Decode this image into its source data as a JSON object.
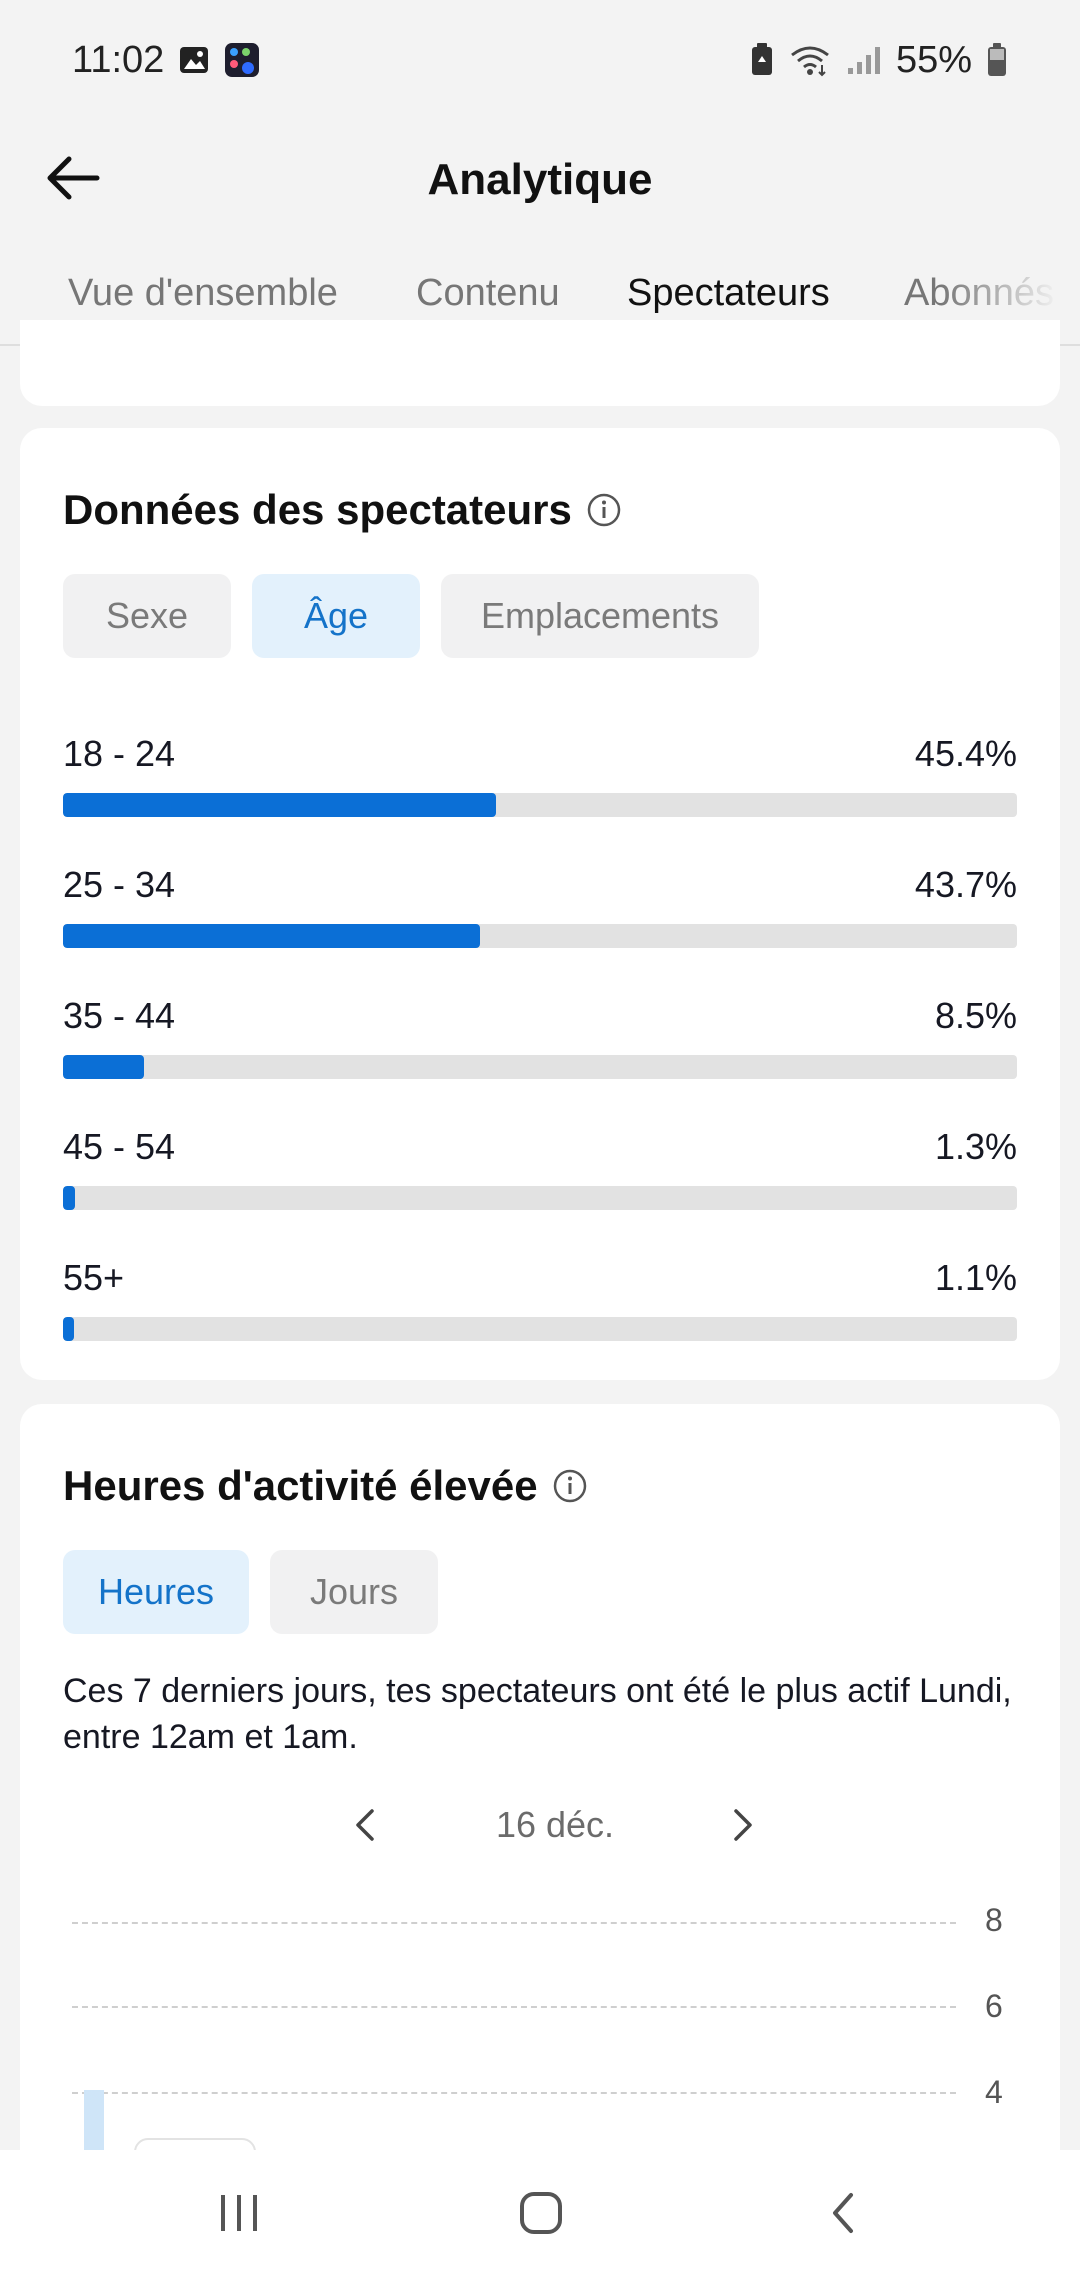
{
  "status_bar": {
    "time": "11:02",
    "battery": "55%",
    "icons": [
      "gallery-icon",
      "app-folder-icon",
      "battery-saver-icon",
      "wifi-icon",
      "signal-icon",
      "battery-icon"
    ]
  },
  "app_bar": {
    "title": "Analytique",
    "back_icon": "arrow-left-icon"
  },
  "tabs": [
    {
      "label": "Vue d'ensemble",
      "active": false
    },
    {
      "label": "Contenu",
      "active": false
    },
    {
      "label": "Spectateurs",
      "active": true
    },
    {
      "label": "Abonnés",
      "active": false
    }
  ],
  "viewers": {
    "title": "Données des spectateurs",
    "filters": [
      {
        "label": "Sexe",
        "active": false
      },
      {
        "label": "Âge",
        "active": true
      },
      {
        "label": "Emplacements",
        "active": false
      }
    ],
    "age_groups": [
      {
        "label": "18 - 24",
        "percent_text": "45.4%",
        "value": 45.4
      },
      {
        "label": "25 - 34",
        "percent_text": "43.7%",
        "value": 43.7
      },
      {
        "label": "35 - 44",
        "percent_text": "8.5%",
        "value": 8.5
      },
      {
        "label": "45 - 54",
        "percent_text": "1.3%",
        "value": 1.3
      },
      {
        "label": "55+",
        "percent_text": "1.1%",
        "value": 1.1
      }
    ],
    "bar_color": "#0b6fd6"
  },
  "activity": {
    "title": "Heures d'activité élevée",
    "filters": [
      {
        "label": "Heures",
        "active": true
      },
      {
        "label": "Jours",
        "active": false
      }
    ],
    "description": "Ces 7 derniers jours, tes spectateurs ont été le plus actif Lundi, entre 12am et 1am.",
    "date": "16 déc.",
    "y_ticks": [
      "8",
      "6",
      "4"
    ]
  },
  "nav_bar": {
    "icons": [
      "recent-apps-icon",
      "home-icon",
      "back-icon"
    ]
  },
  "colors": {
    "accent": "#1473c9",
    "active_pill_bg": "#e3f1fc"
  }
}
